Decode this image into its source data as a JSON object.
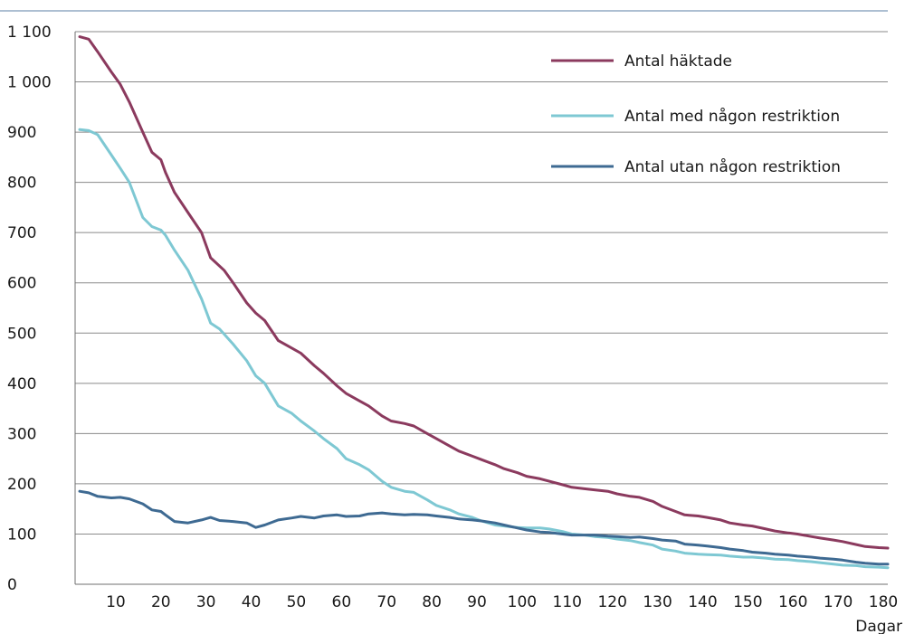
{
  "chart_data": {
    "type": "line",
    "title": "",
    "xlabel": "Dagar",
    "ylabel": "",
    "xlim": [
      0,
      180
    ],
    "ylim": [
      0,
      1100
    ],
    "x_ticks": [
      10,
      20,
      30,
      40,
      50,
      60,
      70,
      80,
      90,
      100,
      110,
      120,
      130,
      140,
      150,
      160,
      170,
      180
    ],
    "y_ticks": [
      0,
      100,
      200,
      300,
      400,
      500,
      600,
      700,
      800,
      900,
      1000,
      1100
    ],
    "y_tick_labels": [
      "0",
      "100",
      "200",
      "300",
      "400",
      "500",
      "600",
      "700",
      "800",
      "900",
      "1 000",
      "1 100"
    ],
    "grid": "horizontal",
    "legend_position": "top-right",
    "series": [
      {
        "name": "Antal häktade",
        "color": "#8b3a5e",
        "x": [
          1,
          3,
          5,
          8,
          10,
          12,
          15,
          17,
          19,
          20,
          22,
          25,
          28,
          30,
          33,
          35,
          38,
          40,
          42,
          45,
          48,
          50,
          53,
          55,
          58,
          60,
          63,
          65,
          68,
          70,
          73,
          75,
          78,
          80,
          83,
          85,
          88,
          90,
          93,
          95,
          98,
          100,
          103,
          105,
          108,
          110,
          113,
          115,
          118,
          120,
          123,
          125,
          128,
          130,
          133,
          135,
          138,
          140,
          143,
          145,
          148,
          150,
          153,
          155,
          158,
          160,
          163,
          165,
          168,
          170,
          173,
          175,
          178,
          180
        ],
        "values": [
          1090,
          1085,
          1060,
          1020,
          995,
          960,
          900,
          860,
          845,
          820,
          780,
          740,
          700,
          650,
          625,
          600,
          560,
          540,
          525,
          485,
          470,
          460,
          435,
          420,
          395,
          380,
          365,
          355,
          335,
          325,
          320,
          315,
          300,
          290,
          275,
          265,
          255,
          248,
          238,
          230,
          222,
          215,
          210,
          205,
          198,
          193,
          190,
          188,
          185,
          180,
          175,
          173,
          165,
          155,
          145,
          138,
          136,
          133,
          128,
          122,
          118,
          116,
          110,
          106,
          102,
          100,
          95,
          92,
          88,
          85,
          79,
          75,
          73,
          72
        ]
      },
      {
        "name": "Antal med någon restriktion",
        "color": "#7ec8d3",
        "x": [
          1,
          3,
          5,
          8,
          10,
          12,
          15,
          17,
          19,
          20,
          22,
          25,
          28,
          30,
          32,
          35,
          38,
          40,
          42,
          45,
          48,
          50,
          53,
          55,
          58,
          60,
          63,
          65,
          68,
          70,
          73,
          75,
          78,
          80,
          83,
          85,
          88,
          90,
          93,
          95,
          98,
          100,
          103,
          105,
          108,
          110,
          113,
          115,
          118,
          120,
          123,
          125,
          128,
          130,
          133,
          135,
          138,
          140,
          143,
          145,
          148,
          150,
          153,
          155,
          158,
          160,
          163,
          165,
          168,
          170,
          173,
          175,
          178,
          180
        ],
        "values": [
          905,
          903,
          895,
          855,
          828,
          800,
          730,
          712,
          705,
          695,
          665,
          625,
          568,
          520,
          508,
          478,
          445,
          415,
          400,
          355,
          340,
          325,
          305,
          290,
          270,
          250,
          238,
          228,
          205,
          193,
          185,
          183,
          168,
          157,
          148,
          140,
          133,
          126,
          118,
          116,
          113,
          112,
          112,
          110,
          105,
          100,
          98,
          95,
          93,
          90,
          87,
          83,
          78,
          70,
          66,
          62,
          60,
          59,
          58,
          56,
          54,
          54,
          52,
          50,
          49,
          47,
          45,
          43,
          40,
          38,
          37,
          35,
          34,
          33
        ]
      },
      {
        "name": "Antal utan någon restriktion",
        "color": "#3e6a92",
        "x": [
          1,
          3,
          5,
          8,
          10,
          12,
          15,
          17,
          19,
          20,
          22,
          25,
          28,
          30,
          32,
          35,
          38,
          40,
          42,
          45,
          48,
          50,
          53,
          55,
          58,
          60,
          63,
          65,
          68,
          70,
          73,
          75,
          78,
          80,
          83,
          85,
          88,
          90,
          93,
          95,
          98,
          100,
          103,
          105,
          108,
          110,
          113,
          115,
          118,
          120,
          123,
          125,
          128,
          130,
          133,
          135,
          138,
          140,
          143,
          145,
          148,
          150,
          153,
          155,
          158,
          160,
          163,
          165,
          168,
          170,
          173,
          175,
          178,
          180
        ],
        "values": [
          185,
          182,
          175,
          172,
          173,
          170,
          160,
          148,
          145,
          138,
          125,
          122,
          128,
          133,
          127,
          125,
          122,
          113,
          118,
          128,
          132,
          135,
          132,
          136,
          138,
          135,
          136,
          140,
          142,
          140,
          138,
          139,
          138,
          136,
          133,
          130,
          128,
          126,
          122,
          118,
          112,
          108,
          104,
          103,
          100,
          98,
          98,
          98,
          96,
          95,
          93,
          94,
          91,
          88,
          86,
          80,
          78,
          76,
          73,
          70,
          67,
          64,
          62,
          60,
          58,
          56,
          54,
          52,
          50,
          48,
          44,
          42,
          40,
          40
        ]
      }
    ]
  }
}
